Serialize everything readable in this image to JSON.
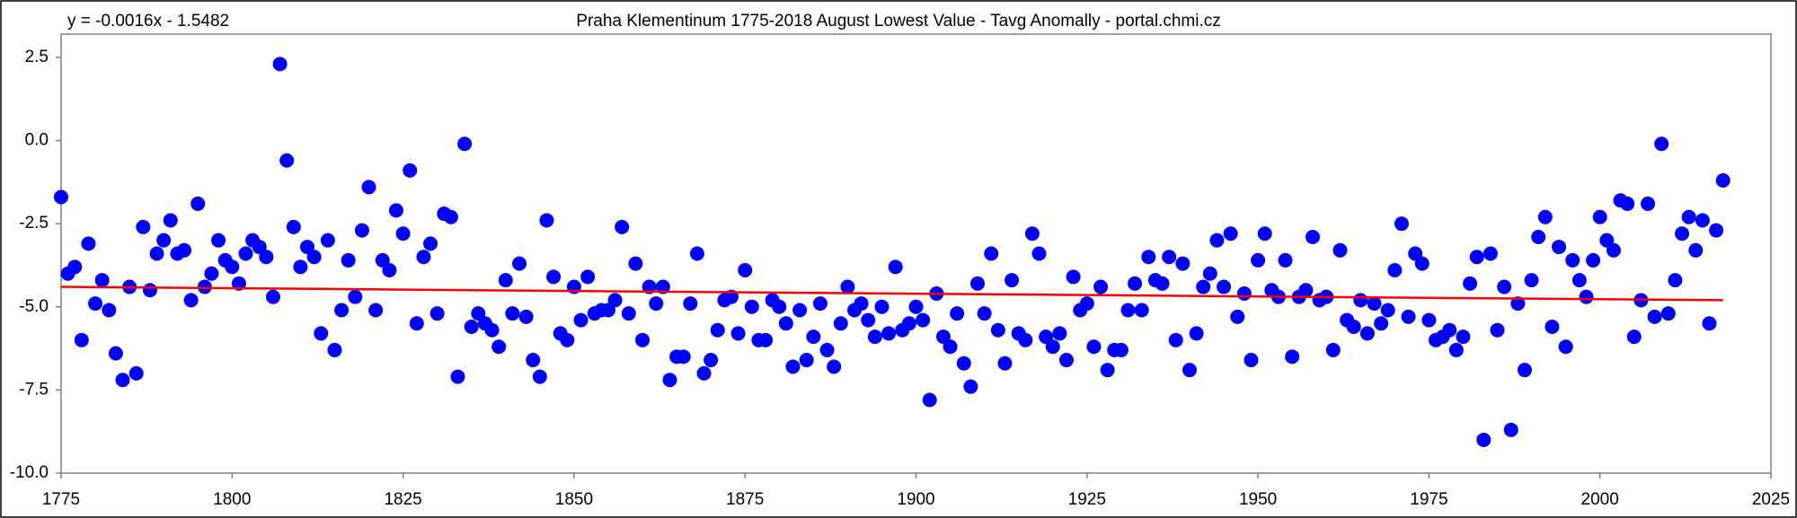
{
  "chart_data": {
    "type": "scatter",
    "title": "Praha Klementinum 1775-2018 August Lowest Value - Tavg Anomally - portal.chmi.cz",
    "annotation": "y = -0.0016x - 1.5482",
    "x": [
      1775,
      1776,
      1777,
      1778,
      1779,
      1780,
      1781,
      1782,
      1783,
      1784,
      1785,
      1786,
      1787,
      1788,
      1789,
      1790,
      1791,
      1792,
      1793,
      1794,
      1795,
      1796,
      1797,
      1798,
      1799,
      1800,
      1801,
      1802,
      1803,
      1804,
      1805,
      1806,
      1807,
      1808,
      1809,
      1810,
      1811,
      1812,
      1813,
      1814,
      1815,
      1816,
      1817,
      1818,
      1819,
      1820,
      1821,
      1822,
      1823,
      1824,
      1825,
      1826,
      1827,
      1828,
      1829,
      1830,
      1831,
      1832,
      1833,
      1834,
      1835,
      1836,
      1837,
      1838,
      1839,
      1840,
      1841,
      1842,
      1843,
      1844,
      1845,
      1846,
      1847,
      1848,
      1849,
      1850,
      1851,
      1852,
      1853,
      1854,
      1855,
      1856,
      1857,
      1858,
      1859,
      1860,
      1861,
      1862,
      1863,
      1864,
      1865,
      1866,
      1867,
      1868,
      1869,
      1870,
      1871,
      1872,
      1873,
      1874,
      1875,
      1876,
      1877,
      1878,
      1879,
      1880,
      1881,
      1882,
      1883,
      1884,
      1885,
      1886,
      1887,
      1888,
      1889,
      1890,
      1891,
      1892,
      1893,
      1894,
      1895,
      1896,
      1897,
      1898,
      1899,
      1900,
      1901,
      1902,
      1903,
      1904,
      1905,
      1906,
      1907,
      1908,
      1909,
      1910,
      1911,
      1912,
      1913,
      1914,
      1915,
      1916,
      1917,
      1918,
      1919,
      1920,
      1921,
      1922,
      1923,
      1924,
      1925,
      1926,
      1927,
      1928,
      1929,
      1930,
      1931,
      1932,
      1933,
      1934,
      1935,
      1936,
      1937,
      1938,
      1939,
      1940,
      1941,
      1942,
      1943,
      1944,
      1945,
      1946,
      1947,
      1948,
      1949,
      1950,
      1951,
      1952,
      1953,
      1954,
      1955,
      1956,
      1957,
      1958,
      1959,
      1960,
      1961,
      1962,
      1963,
      1964,
      1965,
      1966,
      1967,
      1968,
      1969,
      1970,
      1971,
      1972,
      1973,
      1974,
      1975,
      1976,
      1977,
      1978,
      1979,
      1980,
      1981,
      1982,
      1983,
      1984,
      1985,
      1986,
      1987,
      1988,
      1989,
      1990,
      1991,
      1992,
      1993,
      1994,
      1995,
      1996,
      1997,
      1998,
      1999,
      2000,
      2001,
      2002,
      2003,
      2004,
      2005,
      2006,
      2007,
      2008,
      2009,
      2010,
      2011,
      2012,
      2013,
      2014,
      2015,
      2016,
      2017,
      2018
    ],
    "values": [
      -1.7,
      -4.0,
      -3.8,
      -6.0,
      -3.1,
      -4.9,
      -4.2,
      -5.1,
      -6.4,
      -7.2,
      -4.4,
      -7.0,
      -2.6,
      -4.5,
      -3.4,
      -3.0,
      -2.4,
      -3.4,
      -3.3,
      -4.8,
      -1.9,
      -4.4,
      -4.0,
      -3.0,
      -3.6,
      -3.8,
      -4.3,
      -3.4,
      -3.0,
      -3.2,
      -3.5,
      -4.7,
      2.3,
      -0.6,
      -2.6,
      -3.8,
      -3.2,
      -3.5,
      -5.8,
      -3.0,
      -6.3,
      -5.1,
      -3.6,
      -4.7,
      -2.7,
      -1.4,
      -5.1,
      -3.6,
      -3.9,
      -2.1,
      -2.8,
      -0.9,
      -5.5,
      -3.5,
      -3.1,
      -5.2,
      -2.2,
      -2.3,
      -7.1,
      -0.1,
      -5.6,
      -5.2,
      -5.5,
      -5.7,
      -6.2,
      -4.2,
      -5.2,
      -3.7,
      -5.3,
      -6.6,
      -7.1,
      -2.4,
      -4.1,
      -5.8,
      -6.0,
      -4.4,
      -5.4,
      -4.1,
      -5.2,
      -5.1,
      -5.1,
      -4.8,
      -2.6,
      -5.2,
      -3.7,
      -6.0,
      -4.4,
      -4.9,
      -4.4,
      -7.2,
      -6.5,
      -6.5,
      -4.9,
      -3.4,
      -7.0,
      -6.6,
      -5.7,
      -4.8,
      -4.7,
      -5.8,
      -3.9,
      -5.0,
      -6.0,
      -6.0,
      -4.8,
      -5.0,
      -5.5,
      -6.8,
      -5.1,
      -6.6,
      -5.9,
      -4.9,
      -6.3,
      -6.8,
      -5.5,
      -4.4,
      -5.1,
      -4.9,
      -5.4,
      -5.9,
      -5.0,
      -5.8,
      -3.8,
      -5.7,
      -5.5,
      -5.0,
      -5.4,
      -7.8,
      -4.6,
      -5.9,
      -6.2,
      -5.2,
      -6.7,
      -7.4,
      -4.3,
      -5.2,
      -3.4,
      -5.7,
      -6.7,
      -4.2,
      -5.8,
      -6.0,
      -2.8,
      -3.4,
      -5.9,
      -6.2,
      -5.8,
      -6.6,
      -4.1,
      -5.1,
      -4.9,
      -6.2,
      -4.4,
      -6.9,
      -6.3,
      -6.3,
      -5.1,
      -4.3,
      -5.1,
      -3.5,
      -4.2,
      -4.3,
      -3.5,
      -6.0,
      -3.7,
      -6.9,
      -5.8,
      -4.4,
      -4.0,
      -3.0,
      -4.4,
      -2.8,
      -5.3,
      -4.6,
      -6.6,
      -3.6,
      -2.8,
      -4.5,
      -4.7,
      -3.6,
      -6.5,
      -4.7,
      -4.5,
      -2.9,
      -4.8,
      -4.7,
      -6.3,
      -3.3,
      -5.4,
      -5.6,
      -4.8,
      -5.8,
      -4.9,
      -5.5,
      -5.1,
      -3.9,
      -2.5,
      -5.3,
      -3.4,
      -3.7,
      -5.4,
      -6.0,
      -5.9,
      -5.7,
      -6.3,
      -5.9,
      -4.3,
      -3.5,
      -9.0,
      -3.4,
      -5.7,
      -4.4,
      -8.7,
      -4.9,
      -6.9,
      -4.2,
      -2.9,
      -2.3,
      -5.6,
      -3.2,
      -6.2,
      -3.6,
      -4.2,
      -4.7,
      -3.6,
      -2.3,
      -3.0,
      -3.3,
      -1.8,
      -1.9,
      -5.9,
      -4.8,
      -1.9,
      -5.3,
      -0.1,
      -5.2,
      -4.2,
      -2.8,
      -2.3,
      -3.3,
      -2.4,
      -5.5,
      -2.7,
      -1.2
    ],
    "color": "#0000ff",
    "trendline": {
      "x": [
        1775,
        2018
      ],
      "values": [
        -4.4,
        -4.8
      ],
      "color": "#ff0000"
    },
    "xlim": [
      1775,
      2025
    ],
    "xticks": [
      1775,
      1800,
      1825,
      1850,
      1875,
      1900,
      1925,
      1950,
      1975,
      2000,
      2025
    ],
    "ylim": [
      -10,
      3.2
    ],
    "yticks": [
      {
        "value": -10,
        "label": "-10.0"
      },
      -7.5,
      {
        "value": -5,
        "label": "-5.0"
      },
      -2.5,
      {
        "value": 0,
        "label": "0.0"
      },
      2.5
    ],
    "grid": false
  }
}
